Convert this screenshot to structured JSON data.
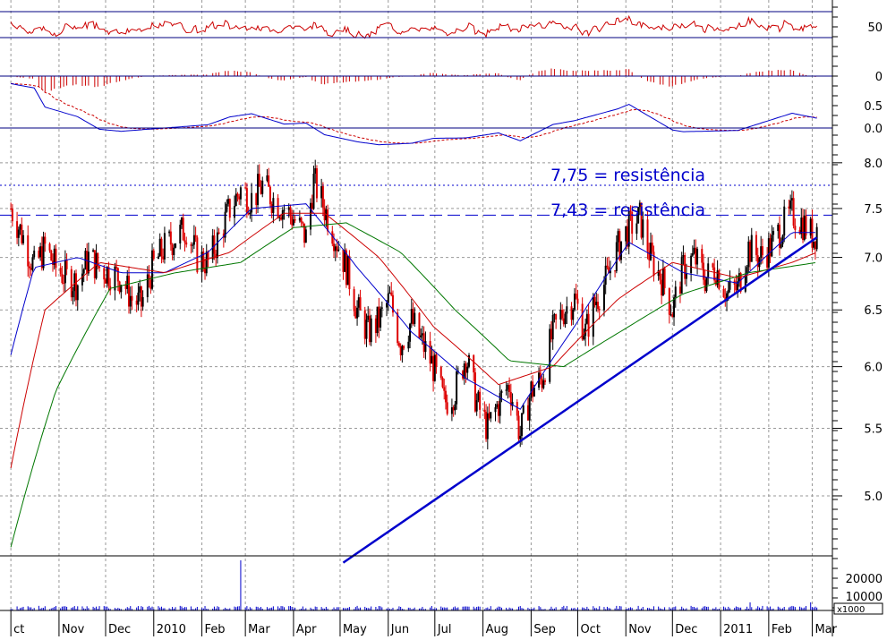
{
  "chart_data": {
    "type": "line",
    "series_kind": "daily candlestick price chart with RSI, MACD histogram, MACD lines and volume panes",
    "x_ticks": [
      "ct",
      "Nov",
      "Dec",
      "2010",
      "Feb",
      "Mar",
      "Apr",
      "May",
      "Jun",
      "Jul",
      "Aug",
      "Sep",
      "Oct",
      "Nov",
      "Dec",
      "2011",
      "Feb",
      "Mar"
    ],
    "price_axis": {
      "ticks": [
        "8.0",
        "7.5",
        "7.0",
        "6.5",
        "6.0",
        "5.5",
        "5.0"
      ],
      "ylim": [
        4.6,
        8.1
      ],
      "scale": "log"
    },
    "rsi_axis": {
      "ticks": [
        "50"
      ],
      "ylim": [
        20,
        80
      ]
    },
    "macd_hist_axis": {
      "ticks": [
        "0"
      ]
    },
    "macd_axis": {
      "ticks": [
        "0.5",
        "0.0"
      ]
    },
    "volume_axis": {
      "ticks": [
        "20000",
        "10000"
      ],
      "multiplier": "x1000"
    },
    "annotations": [
      {
        "text": "7,75 = resistência",
        "value": 7.75
      },
      {
        "text": "7,43 = resistência",
        "value": 7.43
      }
    ],
    "trendline": {
      "from": {
        "date": "2010-05-03",
        "value": 4.55
      },
      "to": {
        "date": "2011-03-04",
        "value": 7.2
      }
    },
    "series": [
      {
        "key": "close",
        "kind": "candlestick",
        "points": [
          [
            "2009-10-01",
            7.5
          ],
          [
            "2009-10-09",
            7.2
          ],
          [
            "2009-10-16",
            6.9
          ],
          [
            "2009-10-23",
            7.1
          ],
          [
            "2009-10-30",
            6.9
          ],
          [
            "2009-11-06",
            6.8
          ],
          [
            "2009-11-13",
            6.75
          ],
          [
            "2009-11-20",
            7.0
          ],
          [
            "2009-11-27",
            6.9
          ],
          [
            "2009-12-04",
            6.85
          ],
          [
            "2009-12-11",
            6.8
          ],
          [
            "2009-12-18",
            6.6
          ],
          [
            "2009-12-24",
            6.55
          ],
          [
            "2009-12-31",
            6.9
          ],
          [
            "2010-01-08",
            7.1
          ],
          [
            "2010-01-15",
            7.2
          ],
          [
            "2010-01-22",
            7.3
          ],
          [
            "2010-01-29",
            7.0
          ],
          [
            "2010-02-05",
            6.95
          ],
          [
            "2010-02-12",
            7.2
          ],
          [
            "2010-02-19",
            7.5
          ],
          [
            "2010-02-26",
            7.7
          ],
          [
            "2010-03-05",
            7.6
          ],
          [
            "2010-03-12",
            7.75
          ],
          [
            "2010-03-19",
            7.6
          ],
          [
            "2010-03-26",
            7.5
          ],
          [
            "2010-04-01",
            7.4
          ],
          [
            "2010-04-09",
            7.2
          ],
          [
            "2010-04-14",
            7.8
          ],
          [
            "2010-04-21",
            7.5
          ],
          [
            "2010-04-28",
            7.2
          ],
          [
            "2010-05-05",
            6.9
          ],
          [
            "2010-05-12",
            6.5
          ],
          [
            "2010-05-19",
            6.3
          ],
          [
            "2010-05-26",
            6.4
          ],
          [
            "2010-06-02",
            6.6
          ],
          [
            "2010-06-09",
            6.2
          ],
          [
            "2010-06-16",
            6.4
          ],
          [
            "2010-06-23",
            6.2
          ],
          [
            "2010-06-30",
            6.0
          ],
          [
            "2010-07-07",
            5.7
          ],
          [
            "2010-07-14",
            5.8
          ],
          [
            "2010-07-21",
            6.1
          ],
          [
            "2010-07-28",
            5.7
          ],
          [
            "2010-08-04",
            5.5
          ],
          [
            "2010-08-11",
            5.7
          ],
          [
            "2010-08-18",
            5.85
          ],
          [
            "2010-08-25",
            5.45
          ],
          [
            "2010-09-01",
            5.8
          ],
          [
            "2010-09-08",
            5.9
          ],
          [
            "2010-09-15",
            6.3
          ],
          [
            "2010-09-22",
            6.5
          ],
          [
            "2010-09-29",
            6.6
          ],
          [
            "2010-10-06",
            6.3
          ],
          [
            "2010-10-13",
            6.6
          ],
          [
            "2010-10-20",
            6.8
          ],
          [
            "2010-10-27",
            7.1
          ],
          [
            "2010-11-03",
            7.3
          ],
          [
            "2010-11-10",
            7.4
          ],
          [
            "2010-11-17",
            7.0
          ],
          [
            "2010-11-24",
            6.8
          ],
          [
            "2010-12-01",
            6.5
          ],
          [
            "2010-12-08",
            6.9
          ],
          [
            "2010-12-15",
            7.0
          ],
          [
            "2010-12-22",
            6.8
          ],
          [
            "2010-12-29",
            6.9
          ],
          [
            "2011-01-05",
            6.65
          ],
          [
            "2011-01-12",
            6.7
          ],
          [
            "2011-01-19",
            7.1
          ],
          [
            "2011-01-26",
            7.0
          ],
          [
            "2011-02-02",
            7.1
          ],
          [
            "2011-02-09",
            7.3
          ],
          [
            "2011-02-16",
            7.45
          ],
          [
            "2011-02-23",
            7.35
          ],
          [
            "2011-03-02",
            7.2
          ],
          [
            "2011-03-04",
            7.3
          ]
        ]
      },
      {
        "key": "ma_blue",
        "color": "#0000cc",
        "points": [
          [
            "2009-10-01",
            6.1
          ],
          [
            "2009-10-16",
            6.9
          ],
          [
            "2009-11-13",
            7.0
          ],
          [
            "2009-12-11",
            6.85
          ],
          [
            "2010-01-08",
            6.85
          ],
          [
            "2010-02-05",
            7.05
          ],
          [
            "2010-03-05",
            7.5
          ],
          [
            "2010-04-09",
            7.55
          ],
          [
            "2010-05-12",
            6.9
          ],
          [
            "2010-06-16",
            6.3
          ],
          [
            "2010-07-21",
            5.9
          ],
          [
            "2010-08-25",
            5.65
          ],
          [
            "2010-09-29",
            6.35
          ],
          [
            "2010-11-03",
            7.15
          ],
          [
            "2010-12-08",
            6.85
          ],
          [
            "2011-01-12",
            6.75
          ],
          [
            "2011-02-16",
            7.25
          ],
          [
            "2011-03-04",
            7.25
          ]
        ]
      },
      {
        "key": "ma_red",
        "color": "#cc0000",
        "points": [
          [
            "2009-10-01",
            5.2
          ],
          [
            "2009-10-23",
            6.5
          ],
          [
            "2009-11-27",
            6.95
          ],
          [
            "2010-01-08",
            6.85
          ],
          [
            "2010-02-19",
            7.05
          ],
          [
            "2010-03-26",
            7.45
          ],
          [
            "2010-04-21",
            7.45
          ],
          [
            "2010-05-26",
            7.0
          ],
          [
            "2010-06-30",
            6.35
          ],
          [
            "2010-08-11",
            5.85
          ],
          [
            "2010-09-15",
            6.0
          ],
          [
            "2010-10-27",
            6.6
          ],
          [
            "2010-12-01",
            6.95
          ],
          [
            "2011-01-12",
            6.8
          ],
          [
            "2011-02-16",
            6.95
          ],
          [
            "2011-03-04",
            7.05
          ]
        ]
      },
      {
        "key": "ma_green",
        "color": "#007700",
        "points": [
          [
            "2009-10-01",
            4.65
          ],
          [
            "2009-10-30",
            5.8
          ],
          [
            "2009-12-04",
            6.7
          ],
          [
            "2010-01-15",
            6.85
          ],
          [
            "2010-02-26",
            6.95
          ],
          [
            "2010-04-01",
            7.3
          ],
          [
            "2010-05-05",
            7.35
          ],
          [
            "2010-06-09",
            7.05
          ],
          [
            "2010-07-14",
            6.5
          ],
          [
            "2010-08-18",
            6.05
          ],
          [
            "2010-09-22",
            6.0
          ],
          [
            "2010-11-03",
            6.35
          ],
          [
            "2010-12-08",
            6.65
          ],
          [
            "2011-01-19",
            6.85
          ],
          [
            "2011-03-04",
            6.95
          ]
        ]
      }
    ]
  }
}
